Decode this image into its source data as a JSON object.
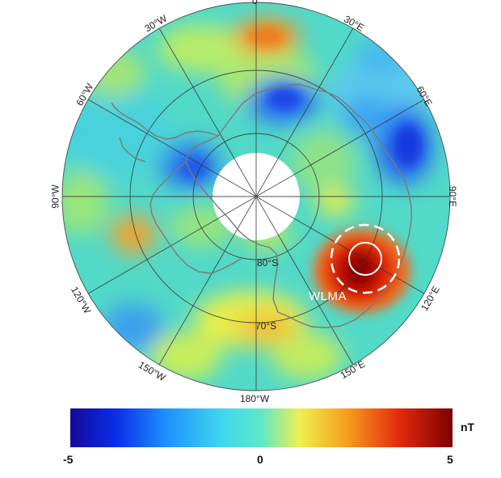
{
  "meridians": [
    {
      "id": "0",
      "label": "0"
    },
    {
      "id": "30e",
      "label": "30°E"
    },
    {
      "id": "60e",
      "label": "60°E"
    },
    {
      "id": "90e",
      "label": "90°E"
    },
    {
      "id": "120e",
      "label": "120°E"
    },
    {
      "id": "150e",
      "label": "150°E"
    },
    {
      "id": "180w",
      "label": "180°W"
    },
    {
      "id": "150w",
      "label": "150°W"
    },
    {
      "id": "120w",
      "label": "120°W"
    },
    {
      "id": "90w",
      "label": "90°W"
    },
    {
      "id": "60w",
      "label": "60°W"
    },
    {
      "id": "30w",
      "label": "30°W"
    }
  ],
  "parallels": {
    "lat80": "80°S",
    "lat70": "70°S"
  },
  "annotation": {
    "label": "WLMA",
    "color": "#ffffff"
  },
  "colorbar": {
    "unit": "nT",
    "min": "-5",
    "mid": "0",
    "max": "5",
    "colors": [
      "#1a0aa0",
      "#0a3cf0",
      "#1e90ff",
      "#3ac8f0",
      "#40e0d0",
      "#f0f050",
      "#f5a020",
      "#e83010",
      "#8b0000"
    ]
  }
}
